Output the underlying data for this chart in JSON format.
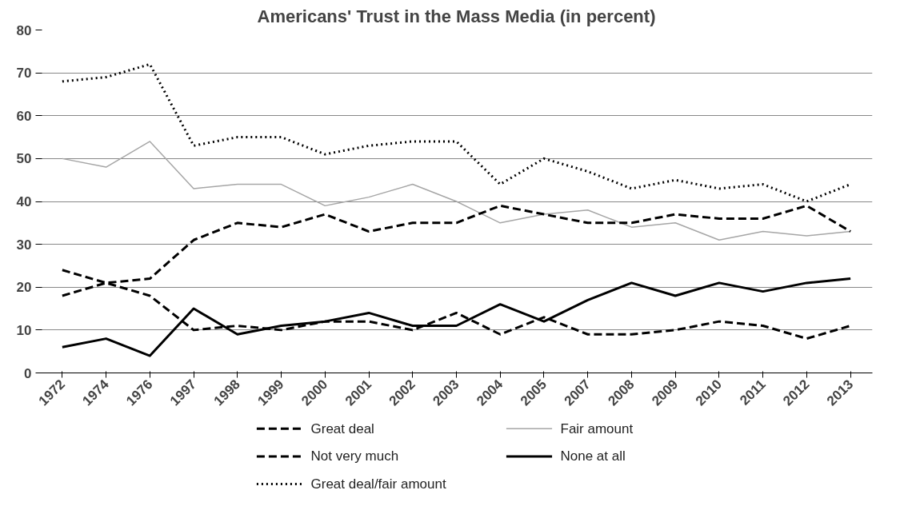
{
  "chart_data": {
    "type": "line",
    "title": "Americans' Trust in the Mass Media (in percent)",
    "categories": [
      "1972",
      "1974",
      "1976",
      "1997",
      "1998",
      "1999",
      "2000",
      "2001",
      "2002",
      "2003",
      "2004",
      "2005",
      "2007",
      "2008",
      "2009",
      "2010",
      "2011",
      "2012",
      "2013"
    ],
    "series": [
      {
        "name": "Great deal",
        "color": "#000000",
        "line_style": "dashed",
        "values": [
          18,
          21,
          18,
          10,
          11,
          10,
          12,
          12,
          10,
          14,
          9,
          13,
          9,
          9,
          10,
          12,
          11,
          8,
          11
        ]
      },
      {
        "name": "Fair amount",
        "color": "#a6a6a6",
        "line_style": "solid",
        "values": [
          50,
          48,
          54,
          43,
          44,
          44,
          39,
          41,
          44,
          40,
          35,
          37,
          38,
          34,
          35,
          31,
          33,
          32,
          33
        ]
      },
      {
        "name": "Not very much",
        "color": "#000000",
        "line_style": "dashed",
        "values": [
          24,
          21,
          22,
          31,
          35,
          34,
          37,
          33,
          35,
          35,
          39,
          37,
          35,
          35,
          37,
          36,
          36,
          39,
          33
        ]
      },
      {
        "name": "None at all",
        "color": "#000000",
        "line_style": "solid",
        "values": [
          6,
          8,
          4,
          15,
          9,
          11,
          12,
          14,
          11,
          11,
          16,
          12,
          17,
          21,
          18,
          21,
          19,
          21,
          22
        ]
      },
      {
        "name": "Great deal/fair amount",
        "color": "#000000",
        "line_style": "dotted",
        "values": [
          68,
          69,
          72,
          53,
          55,
          55,
          51,
          53,
          54,
          54,
          44,
          50,
          47,
          43,
          45,
          43,
          44,
          40,
          44
        ]
      }
    ],
    "ylim": [
      0,
      80
    ],
    "yticks": [
      0,
      10,
      20,
      30,
      40,
      50,
      60,
      70,
      80
    ],
    "grid": "y",
    "legend": "bottom",
    "marker": "none"
  }
}
